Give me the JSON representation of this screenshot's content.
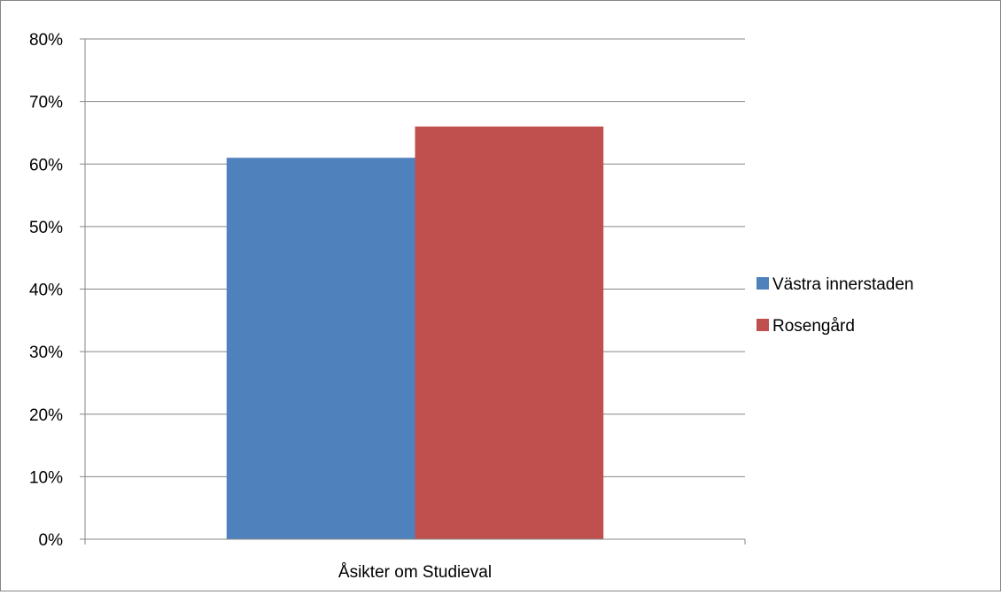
{
  "chart_data": {
    "type": "bar",
    "title": "",
    "xlabel": "",
    "ylabel": "",
    "categories": [
      "Åsikter om Studieval"
    ],
    "series": [
      {
        "name": "Västra innerstaden",
        "values": [
          0.61
        ],
        "color": "#4F81BD"
      },
      {
        "name": "Rosengård",
        "values": [
          0.66
        ],
        "color": "#C0504D"
      }
    ],
    "ylim": [
      0,
      0.8
    ],
    "yticks": [
      0,
      0.1,
      0.2,
      0.3,
      0.4,
      0.5,
      0.6,
      0.7,
      0.8
    ],
    "ytick_labels": [
      "0%",
      "10%",
      "20%",
      "30%",
      "40%",
      "50%",
      "60%",
      "70%",
      "80%"
    ],
    "grid": true,
    "legend_position": "right",
    "gridline_color": "#868686"
  }
}
